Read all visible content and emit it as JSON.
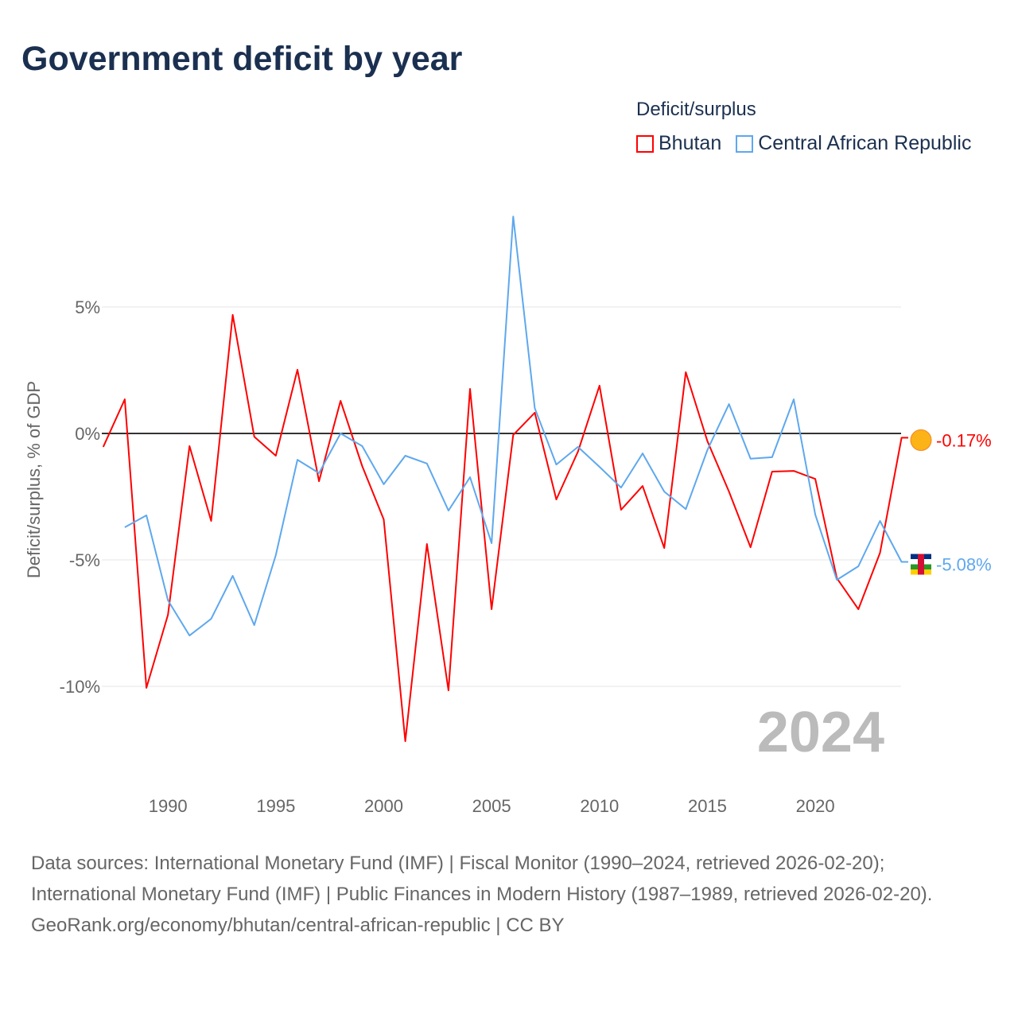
{
  "title": "Government deficit by year",
  "legend_title": "Deficit/surplus",
  "footer": {
    "sources": "Data sources: International Monetary Fund (IMF) | Fiscal Monitor (1990–2024, retrieved 2026-02-20); International Monetary Fund (IMF) | Public Finances in Modern History (1987–1989, retrieved 2026-02-20).",
    "link": "GeoRank.org/economy/bhutan/central-african-republic | CC BY"
  },
  "chart_data": {
    "type": "line",
    "title": "Government deficit by year",
    "ylabel": "Deficit/surplus, % of GDP",
    "xlabel": "",
    "ylim": [
      -13,
      9
    ],
    "xlim": [
      1987,
      2024
    ],
    "yticks": [
      5,
      0,
      -5,
      -10
    ],
    "ytick_labels": [
      "5%",
      "0%",
      "-5%",
      "-10%"
    ],
    "xticks": [
      1990,
      1995,
      2000,
      2005,
      2010,
      2015,
      2020
    ],
    "year_label": "2024",
    "legend_position": "top-right",
    "series": [
      {
        "name": "Bhutan",
        "color": "#ff0000",
        "end_label": "-0.17%",
        "start": 1987,
        "values": [
          -0.53,
          1.35,
          -10.06,
          -7.17,
          -0.5,
          -3.46,
          4.69,
          -0.13,
          -0.88,
          2.52,
          -1.89,
          1.29,
          -1.29,
          -3.4,
          -12.17,
          -4.37,
          -10.16,
          1.76,
          -6.95,
          -0.06,
          0.82,
          -2.61,
          -0.72,
          1.89,
          -3.02,
          -2.08,
          -4.53,
          2.42,
          -0.3,
          -2.3,
          -4.5,
          -1.51,
          -1.48,
          -1.8,
          -5.72,
          -6.95,
          -4.72,
          -0.17
        ]
      },
      {
        "name": "Central African Republic",
        "color": "#5ea8ee",
        "end_label": "-5.08%",
        "start": 1988,
        "values": [
          -3.71,
          -3.24,
          -6.6,
          -7.99,
          -7.33,
          -5.63,
          -7.58,
          -4.81,
          -1.04,
          -1.57,
          0,
          -0.5,
          -2.01,
          -0.88,
          -1.19,
          -3.05,
          -1.73,
          -4.34,
          8.58,
          1.0,
          -1.23,
          -0.53,
          -1.32,
          -2.14,
          -0.79,
          -2.3,
          -2.99,
          -0.66,
          1.16,
          -1.0,
          -0.94,
          1.35,
          -3.21,
          -5.79,
          -5.25,
          -3.46,
          -5.08
        ]
      }
    ]
  }
}
